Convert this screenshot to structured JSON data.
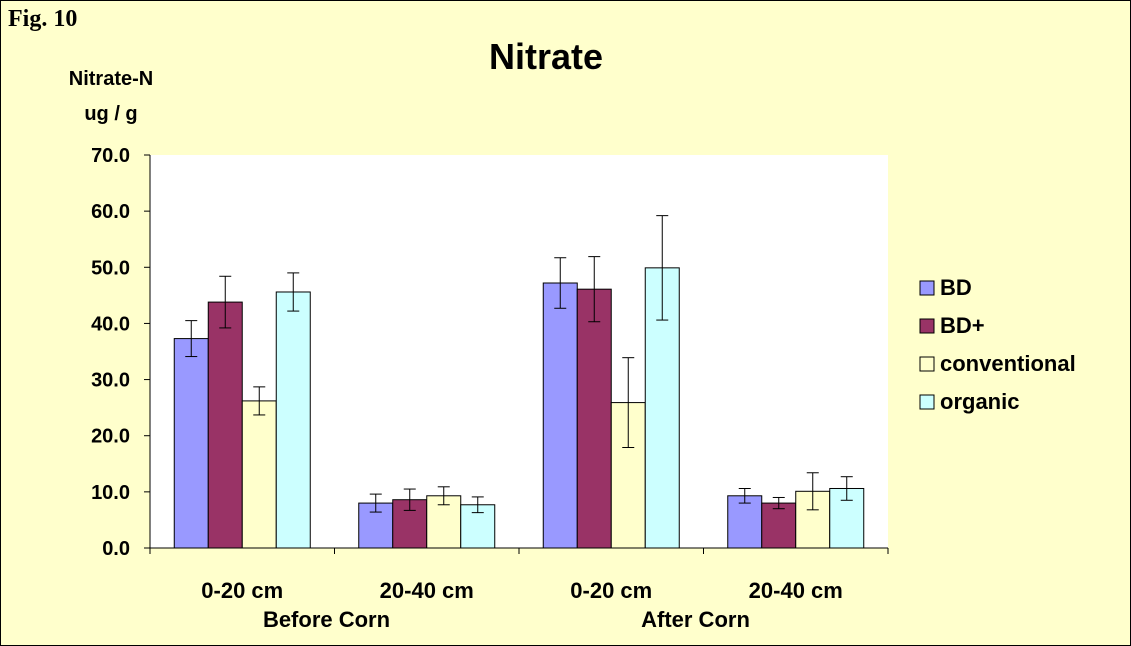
{
  "figure_label": "Fig. 10",
  "colors": {
    "background": "#ffffcc",
    "plot_area": "#ffffff"
  },
  "chart_data": {
    "type": "bar",
    "title": "Nitrate",
    "ylabel_lines": [
      "Nitrate-N",
      "ug / g"
    ],
    "xlabel": "",
    "ylim": [
      0,
      70
    ],
    "yticks": [
      "0.0",
      "10.0",
      "20.0",
      "30.0",
      "40.0",
      "50.0",
      "60.0",
      "70.0"
    ],
    "categories": [
      "0-20 cm",
      "20-40 cm",
      "0-20 cm",
      "20-40 cm"
    ],
    "groups": [
      "Before Corn",
      "After Corn"
    ],
    "legend_position": "right",
    "series": [
      {
        "name": "BD",
        "color": "#9999ff",
        "values": [
          37.3,
          8.0,
          47.2,
          9.3
        ],
        "errors": [
          3.2,
          1.6,
          4.5,
          1.3
        ]
      },
      {
        "name": "BD+",
        "color": "#993366",
        "values": [
          43.8,
          8.6,
          46.1,
          8.0
        ],
        "errors": [
          4.6,
          1.9,
          5.8,
          1.0
        ]
      },
      {
        "name": "conventional",
        "color": "#ffffcc",
        "values": [
          26.2,
          9.3,
          25.9,
          10.1
        ],
        "errors": [
          2.5,
          1.6,
          8.0,
          3.3
        ]
      },
      {
        "name": "organic",
        "color": "#ccffff",
        "values": [
          45.6,
          7.7,
          49.9,
          10.6
        ],
        "errors": [
          3.4,
          1.4,
          9.3,
          2.1
        ]
      }
    ]
  }
}
